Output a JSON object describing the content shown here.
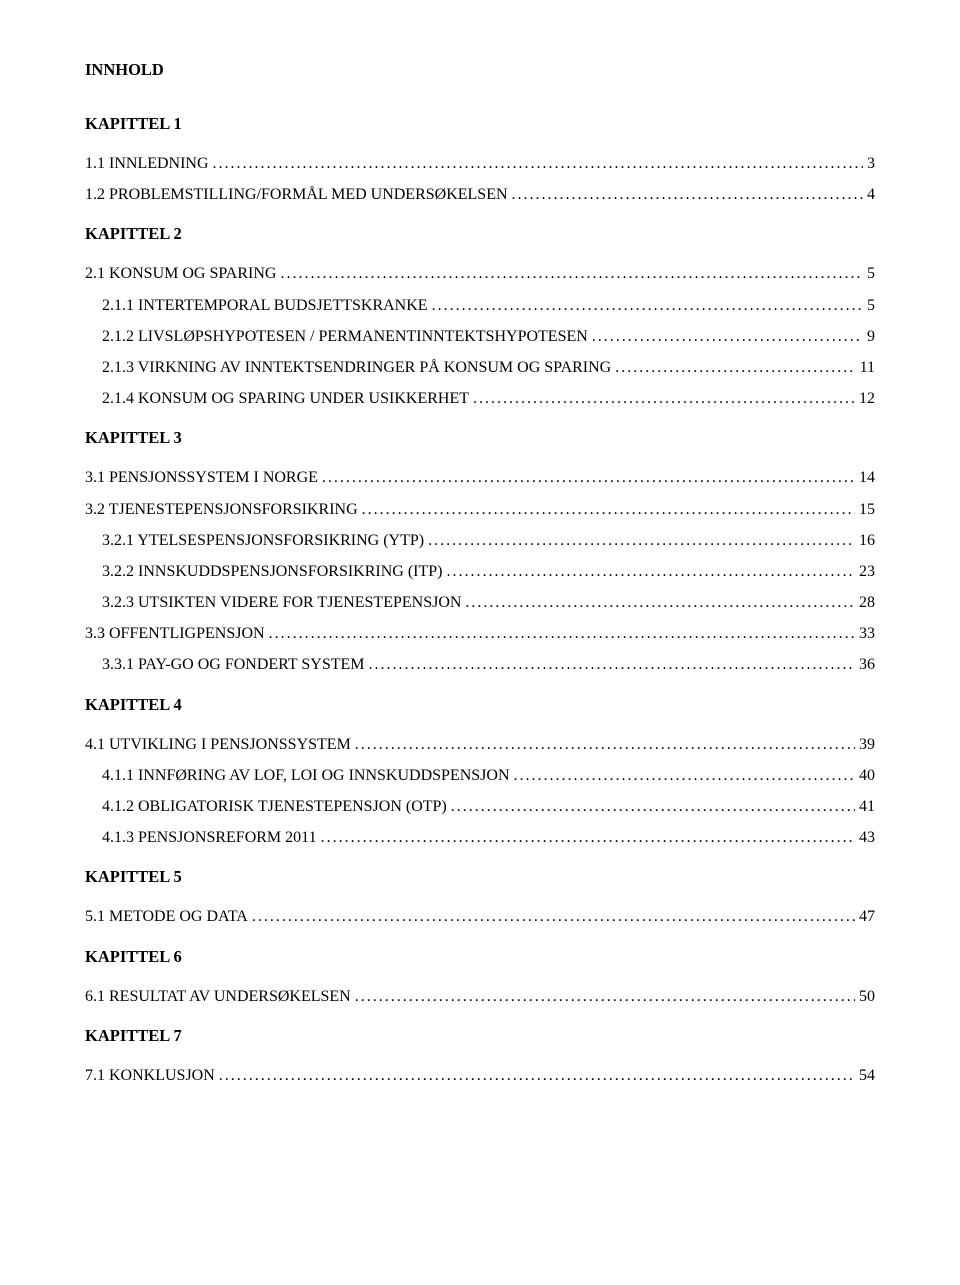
{
  "title": "INNHOLD",
  "colors": {
    "background": "#ffffff",
    "text": "#000000"
  },
  "typography": {
    "family": "Times New Roman",
    "heading_size_pt": 12,
    "body_size_pt": 12,
    "heading_weight": "bold",
    "body_weight": "normal"
  },
  "chapters": [
    {
      "heading": "KAPITTEL 1",
      "entries": [
        {
          "indent": 0,
          "label": "1.1 INNLEDNING",
          "page": "3"
        },
        {
          "indent": 0,
          "label": "1.2 PROBLEMSTILLING/FORMÅL MED UNDERSØKELSEN",
          "page": "4"
        }
      ]
    },
    {
      "heading": "KAPITTEL 2",
      "entries": [
        {
          "indent": 0,
          "label": "2.1 KONSUM OG SPARING",
          "page": "5"
        },
        {
          "indent": 1,
          "label": "2.1.1 INTERTEMPORAL BUDSJETTSKRANKE",
          "page": "5"
        },
        {
          "indent": 1,
          "label": "2.1.2 LIVSLØPSHYPOTESEN / PERMANENTINNTEKTSHYPOTESEN",
          "page": "9"
        },
        {
          "indent": 1,
          "label": "2.1.3 VIRKNING AV INNTEKTSENDRINGER PÅ KONSUM OG SPARING",
          "page": "11"
        },
        {
          "indent": 1,
          "label": "2.1.4 KONSUM OG SPARING UNDER USIKKERHET",
          "page": "12"
        }
      ]
    },
    {
      "heading": "KAPITTEL 3",
      "entries": [
        {
          "indent": 0,
          "label": "3.1 PENSJONSSYSTEM I NORGE",
          "page": "14"
        },
        {
          "indent": 0,
          "label": "3.2 TJENESTEPENSJONSFORSIKRING",
          "page": "15"
        },
        {
          "indent": 1,
          "label": "3.2.1 YTELSESPENSJONSFORSIKRING (YTP)",
          "page": "16"
        },
        {
          "indent": 1,
          "label": "3.2.2 INNSKUDDSPENSJONSFORSIKRING (ITP)",
          "page": "23"
        },
        {
          "indent": 1,
          "label": "3.2.3 UTSIKTEN VIDERE FOR TJENESTEPENSJON",
          "page": "28"
        },
        {
          "indent": 0,
          "label": "3.3 OFFENTLIGPENSJON",
          "page": "33"
        },
        {
          "indent": 1,
          "label": "3.3.1 PAY-GO OG FONDERT SYSTEM",
          "page": "36"
        }
      ]
    },
    {
      "heading": "KAPITTEL 4",
      "entries": [
        {
          "indent": 0,
          "label": "4.1 UTVIKLING I PENSJONSSYSTEM",
          "page": "39"
        },
        {
          "indent": 1,
          "label": "4.1.1 INNFØRING AV LOF, LOI OG INNSKUDDSPENSJON",
          "page": "40"
        },
        {
          "indent": 1,
          "label": "4.1.2 OBLIGATORISK TJENESTEPENSJON (OTP)",
          "page": "41"
        },
        {
          "indent": 1,
          "label": "4.1.3 PENSJONSREFORM 2011",
          "page": "43"
        }
      ]
    },
    {
      "heading": "KAPITTEL 5",
      "entries": [
        {
          "indent": 0,
          "label": "5.1 METODE OG DATA",
          "page": "47"
        }
      ]
    },
    {
      "heading": "KAPITTEL 6",
      "entries": [
        {
          "indent": 0,
          "label": "6.1 RESULTAT AV UNDERSØKELSEN",
          "page": "50"
        }
      ]
    },
    {
      "heading": "KAPITTEL 7",
      "entries": [
        {
          "indent": 0,
          "label": "7.1 KONKLUSJON",
          "page": "54"
        }
      ]
    }
  ]
}
